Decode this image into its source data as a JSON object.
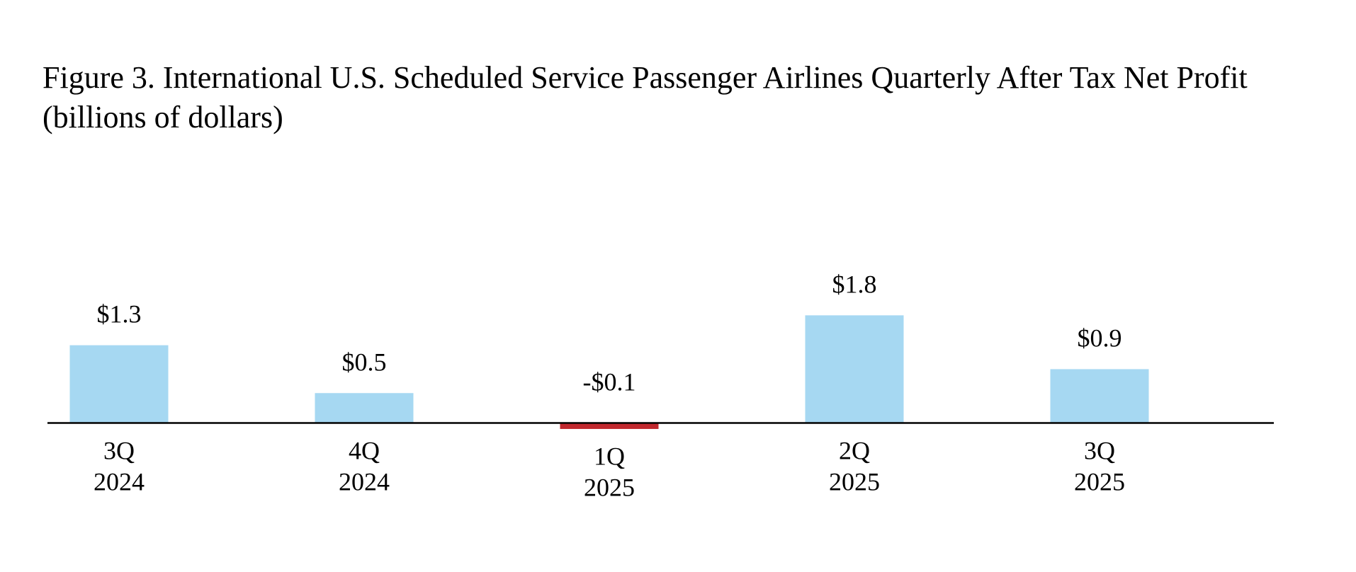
{
  "chart_data": {
    "type": "bar",
    "title": "Figure 3. International U.S. Scheduled Service Passenger Airlines Quarterly After Tax Net Profit",
    "subtitle": "(billions of dollars)",
    "categories": [
      [
        "3Q",
        "2024"
      ],
      [
        "4Q",
        "2024"
      ],
      [
        "1Q",
        "2025"
      ],
      [
        "2Q",
        "2025"
      ],
      [
        "3Q",
        "2025"
      ]
    ],
    "values": [
      1.3,
      0.5,
      -0.1,
      1.8,
      0.9
    ],
    "value_labels": [
      "$1.3",
      "$0.5",
      "-$0.1",
      "$1.8",
      "$0.9"
    ],
    "colors": [
      "#a6d8f2",
      "#a6d8f2",
      "#c0272d",
      "#a6d8f2",
      "#a6d8f2"
    ],
    "ylim": [
      -1,
      3
    ]
  }
}
